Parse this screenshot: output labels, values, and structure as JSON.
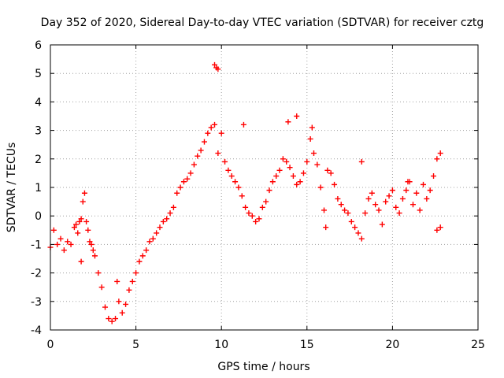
{
  "chart_data": {
    "type": "scatter",
    "title": "Day 352 of 2020, Sidereal Day-to-day VTEC variation (SDTVAR) for receiver cztg",
    "xlabel": "GPS time / hours",
    "ylabel": "SDTVAR / TECUs",
    "xlim": [
      0,
      25
    ],
    "ylim": [
      -4,
      6
    ],
    "xticks": [
      "0",
      "5",
      "10",
      "15",
      "20",
      "25"
    ],
    "yticks": [
      "-4",
      "-3",
      "-2",
      "-1",
      "0",
      "1",
      "2",
      "3",
      "4",
      "5",
      "6"
    ],
    "grid": true,
    "marker": "+",
    "series": [
      {
        "name": "SDTVAR",
        "color": "#ff0000",
        "x": [
          0.0,
          0.2,
          0.4,
          0.6,
          0.8,
          1.0,
          1.2,
          1.4,
          1.5,
          1.6,
          1.7,
          1.8,
          1.9,
          2.0,
          2.1,
          2.2,
          2.3,
          2.4,
          2.5,
          2.6,
          2.8,
          3.0,
          3.2,
          3.4,
          3.6,
          3.8,
          4.0,
          4.2,
          4.4,
          4.6,
          4.8,
          5.0,
          5.2,
          5.4,
          5.6,
          5.8,
          6.0,
          6.2,
          6.4,
          6.6,
          6.8,
          7.0,
          7.2,
          7.4,
          7.6,
          7.8,
          8.0,
          8.2,
          8.4,
          8.6,
          8.8,
          9.0,
          9.2,
          9.4,
          9.6,
          9.8,
          10.0,
          10.2,
          10.4,
          10.6,
          10.8,
          11.0,
          11.2,
          11.4,
          11.6,
          11.8,
          12.0,
          12.2,
          12.4,
          12.6,
          12.8,
          13.0,
          13.2,
          13.4,
          13.6,
          13.8,
          14.0,
          14.2,
          14.4,
          14.6,
          14.8,
          15.0,
          15.2,
          15.4,
          15.6,
          15.8,
          16.0,
          16.2,
          16.4,
          16.6,
          16.8,
          17.0,
          17.2,
          17.4,
          17.6,
          17.8,
          18.0,
          18.2,
          18.4,
          18.6,
          18.8,
          19.0,
          19.2,
          19.4,
          19.6,
          19.8,
          20.0,
          20.2,
          20.4,
          20.6,
          20.8,
          21.0,
          21.2,
          21.4,
          21.6,
          21.8,
          22.0,
          22.2,
          22.4,
          22.6,
          22.8
        ],
        "y": [
          -1.1,
          -0.5,
          -1.0,
          -0.8,
          -1.2,
          -0.9,
          -1.0,
          -0.4,
          -0.3,
          -0.6,
          -0.2,
          -0.1,
          0.5,
          0.8,
          -0.2,
          -0.5,
          -0.9,
          -1.0,
          -1.2,
          -1.4,
          -2.0,
          -2.5,
          -3.2,
          -3.6,
          -3.7,
          -3.6,
          -3.0,
          -3.4,
          -3.1,
          -2.6,
          -2.3,
          -2.0,
          -1.6,
          -1.4,
          -1.2,
          -0.9,
          -0.8,
          -0.6,
          -0.4,
          -0.2,
          -0.1,
          0.1,
          0.3,
          0.8,
          1.0,
          1.2,
          1.3,
          1.5,
          1.8,
          2.1,
          2.3,
          2.6,
          2.9,
          3.1,
          3.2,
          2.2,
          2.9,
          1.9,
          1.6,
          1.4,
          1.2,
          1.0,
          0.7,
          0.3,
          0.1,
          0.0,
          -0.2,
          -0.1,
          0.3,
          0.5,
          0.9,
          1.2,
          1.4,
          1.6,
          2.0,
          1.9,
          1.7,
          1.4,
          1.1,
          1.2,
          1.5,
          1.9,
          2.7,
          2.2,
          1.8,
          1.0,
          0.2,
          1.6,
          1.5,
          1.1,
          0.6,
          0.4,
          0.2,
          0.1,
          -0.2,
          -0.4,
          -0.6,
          -0.8,
          0.1,
          0.6,
          0.8,
          0.4,
          0.2,
          -0.3,
          0.5,
          0.7,
          0.9,
          0.3,
          0.1,
          0.6,
          0.9,
          1.2,
          0.4,
          0.8,
          0.2,
          1.1,
          0.6,
          0.9,
          1.4,
          2.0,
          2.2
        ],
        "extra_points": [
          {
            "x": 9.6,
            "y": 5.3
          },
          {
            "x": 9.7,
            "y": 5.2
          },
          {
            "x": 9.8,
            "y": 5.15
          },
          {
            "x": 14.4,
            "y": 3.5
          },
          {
            "x": 13.9,
            "y": 3.3
          },
          {
            "x": 11.3,
            "y": 3.2
          },
          {
            "x": 15.3,
            "y": 3.1
          },
          {
            "x": 16.1,
            "y": -0.4
          },
          {
            "x": 1.8,
            "y": -1.6
          },
          {
            "x": 3.9,
            "y": -2.3
          },
          {
            "x": 22.6,
            "y": -0.5
          },
          {
            "x": 22.8,
            "y": -0.4
          },
          {
            "x": 18.2,
            "y": 1.9
          },
          {
            "x": 20.9,
            "y": 1.2
          }
        ]
      }
    ]
  }
}
